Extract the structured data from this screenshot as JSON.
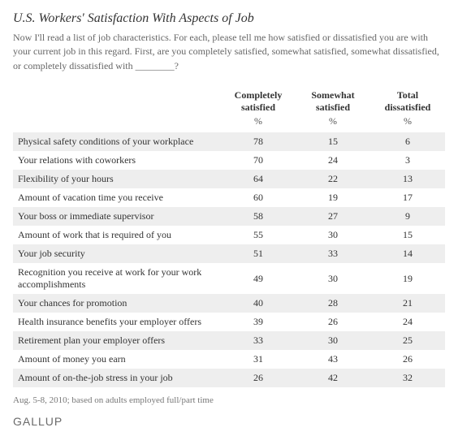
{
  "title": "U.S. Workers' Satisfaction With Aspects of Job",
  "intro": "Now I'll read a list of job characteristics. For each, please tell me how satisfied or dissatisfied you are with your current job in this regard. First, are you completely satisfied, somewhat satisfied, somewhat dissatisfied, or completely dissatisfied with ________?",
  "columns": {
    "c1": "Completely satisfied",
    "c2": "Somewhat satisfied",
    "c3": "Total dissatisfied",
    "unit": "%"
  },
  "rows": [
    {
      "label": "Physical safety conditions of your workplace",
      "c1": "78",
      "c2": "15",
      "c3": "6"
    },
    {
      "label": "Your relations with coworkers",
      "c1": "70",
      "c2": "24",
      "c3": "3"
    },
    {
      "label": "Flexibility of your hours",
      "c1": "64",
      "c2": "22",
      "c3": "13"
    },
    {
      "label": "Amount of vacation time you receive",
      "c1": "60",
      "c2": "19",
      "c3": "17"
    },
    {
      "label": "Your boss or immediate supervisor",
      "c1": "58",
      "c2": "27",
      "c3": "9"
    },
    {
      "label": "Amount of work that is required of you",
      "c1": "55",
      "c2": "30",
      "c3": "15"
    },
    {
      "label": "Your job security",
      "c1": "51",
      "c2": "33",
      "c3": "14"
    },
    {
      "label": "Recognition you receive at work for your work accomplishments",
      "c1": "49",
      "c2": "30",
      "c3": "19"
    },
    {
      "label": "Your chances for promotion",
      "c1": "40",
      "c2": "28",
      "c3": "21"
    },
    {
      "label": "Health insurance benefits your employer offers",
      "c1": "39",
      "c2": "26",
      "c3": "24"
    },
    {
      "label": "Retirement plan your employer offers",
      "c1": "33",
      "c2": "30",
      "c3": "25"
    },
    {
      "label": "Amount of money you earn",
      "c1": "31",
      "c2": "43",
      "c3": "26"
    },
    {
      "label": "Amount of on-the-job stress in your job",
      "c1": "26",
      "c2": "42",
      "c3": "32"
    }
  ],
  "footnote": "Aug. 5-8, 2010; based on adults employed full/part time",
  "brand": "GALLUP",
  "styling": {
    "stripe_color": "#eeeeee",
    "background": "#ffffff",
    "title_fontsize": 16,
    "body_fontsize": 12,
    "text_color": "#333333",
    "muted_color": "#666666",
    "font_family": "Georgia, serif"
  }
}
